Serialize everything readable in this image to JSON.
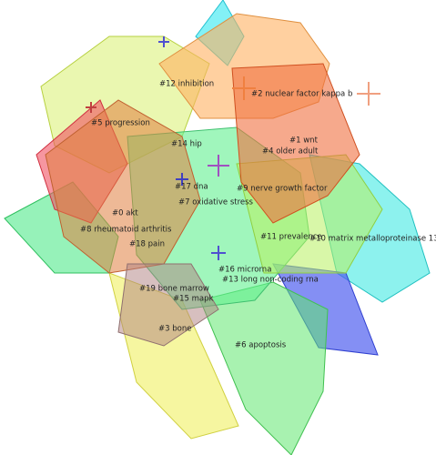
{
  "labels": [
    "#12 inhibition",
    "#2 nuclear factor kappa b",
    "#5 progression",
    "#1 wnt",
    "#14 hip",
    "#4 older adult",
    "#17 dna",
    "#9 nerve growth factor",
    "#7 oxidative stress",
    "#0 akt",
    "#8 rheumatoid arthritis",
    "#11 prevalence",
    "#10 matrix metalloproteinase 13",
    "#18 pain",
    "#16 microrna",
    "#13 long non-coding rna",
    "#19 bone marrow",
    "#15 mapk",
    "#3 bone",
    "#6 apoptosis"
  ]
}
